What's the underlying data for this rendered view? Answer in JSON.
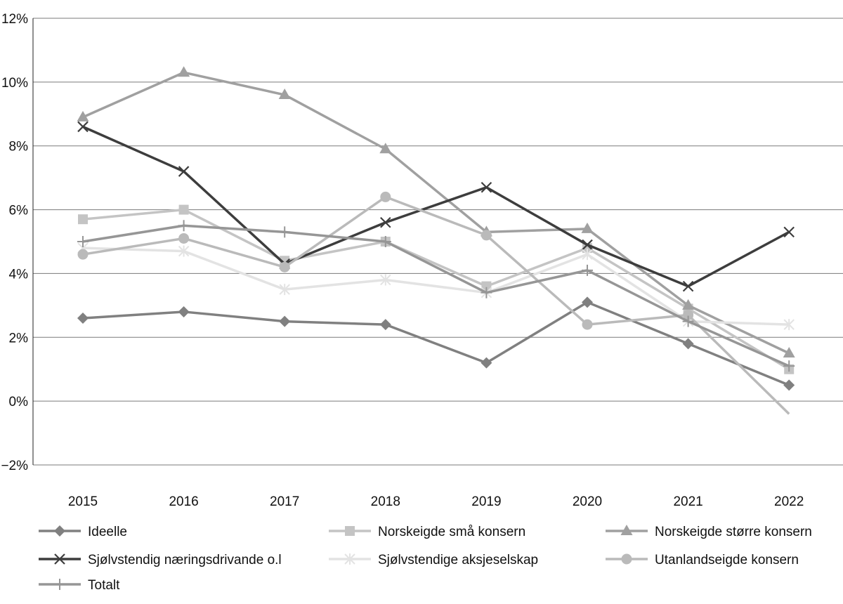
{
  "chart_data": {
    "type": "line",
    "x": [
      "2015",
      "2016",
      "2017",
      "2018",
      "2019",
      "2020",
      "2021",
      "2022"
    ],
    "ylim": [
      -2,
      12
    ],
    "yticks": [
      -2,
      0,
      2,
      4,
      6,
      8,
      10,
      12
    ],
    "ytick_labels": [
      "−2%",
      "0%",
      "2%",
      "4%",
      "6%",
      "8%",
      "10%",
      "12%"
    ],
    "grid": "horizontal",
    "legend_position": "bottom",
    "series": [
      {
        "name": "Ideelle",
        "color": "#808080",
        "marker": "diamond",
        "values": [
          2.6,
          2.8,
          2.5,
          2.4,
          1.2,
          3.1,
          1.8,
          0.5
        ]
      },
      {
        "name": "Norskeigde små konsern",
        "color": "#c4c4c4",
        "marker": "square",
        "values": [
          5.7,
          6.0,
          4.4,
          5.0,
          3.6,
          4.8,
          2.9,
          1.0
        ]
      },
      {
        "name": "Norskeigde større konsern",
        "color": "#a0a0a0",
        "marker": "triangle",
        "values": [
          8.9,
          10.3,
          9.6,
          7.9,
          5.3,
          5.4,
          3.0,
          1.5
        ]
      },
      {
        "name": "Sjølvstendig næringsdrivande o.l",
        "color": "#3d3d3d",
        "marker": "x",
        "values": [
          8.6,
          7.2,
          4.3,
          5.6,
          6.7,
          4.9,
          3.6,
          5.3
        ]
      },
      {
        "name": "Sjølvstendige aksjeselskap",
        "color": "#e3e3e3",
        "marker": "asterisk",
        "values": [
          4.8,
          4.7,
          3.5,
          3.8,
          3.4,
          4.6,
          2.5,
          2.4
        ]
      },
      {
        "name": "Utanlandseigde konsern",
        "color": "#bababa",
        "marker": "circle",
        "values": [
          4.6,
          5.1,
          4.2,
          6.4,
          5.2,
          2.4,
          2.7,
          -0.4
        ]
      },
      {
        "name": "Totalt",
        "color": "#969696",
        "marker": "plus",
        "values": [
          5.0,
          5.5,
          5.3,
          5.0,
          3.4,
          4.1,
          2.5,
          1.1
        ]
      }
    ]
  }
}
